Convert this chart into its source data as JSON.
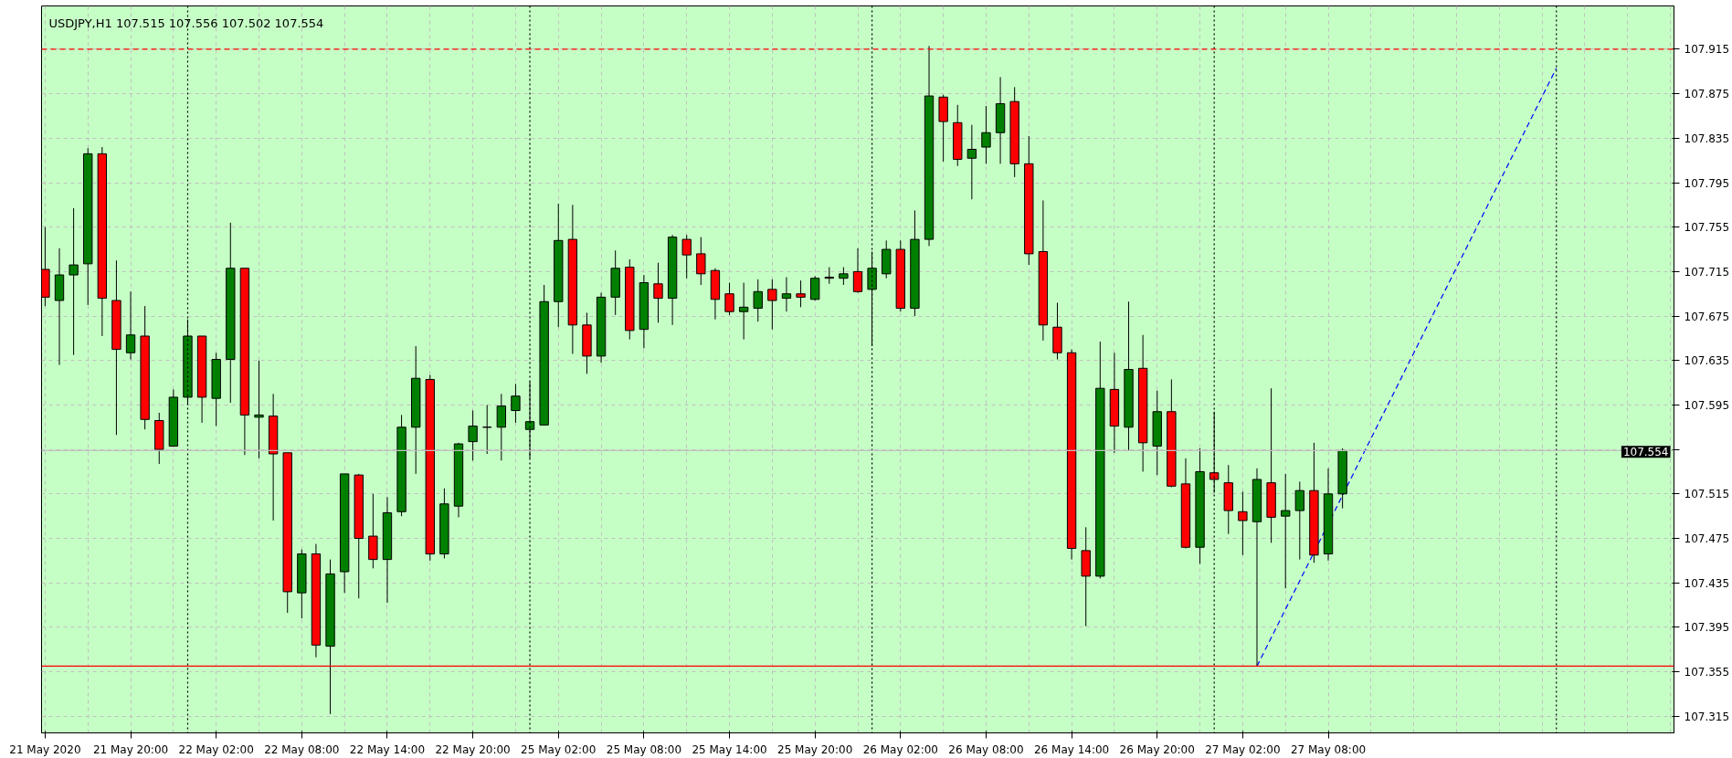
{
  "chart_data": {
    "type": "candlestick",
    "title": "USDJPY,H1  107.515 107.556 107.502 107.554",
    "categories": [
      "21 May 2020",
      null,
      null,
      null,
      null,
      null,
      "21 May 20:00",
      null,
      null,
      null,
      null,
      null,
      "22 May 02:00",
      null,
      null,
      null,
      null,
      null,
      "22 May 08:00",
      null,
      null,
      null,
      null,
      null,
      "22 May 14:00",
      null,
      null,
      null,
      null,
      null,
      "22 May 20:00",
      null,
      null,
      null,
      null,
      null,
      "25 May 02:00",
      null,
      null,
      null,
      null,
      null,
      "25 May 08:00",
      null,
      null,
      null,
      null,
      null,
      "25 May 14:00",
      null,
      null,
      null,
      null,
      null,
      "25 May 20:00",
      null,
      null,
      null,
      null,
      null,
      "26 May 02:00",
      null,
      null,
      null,
      null,
      null,
      "26 May 08:00",
      null,
      null,
      null,
      null,
      null,
      "26 May 14:00",
      null,
      null,
      null,
      null,
      null,
      "26 May 20:00",
      null,
      null,
      null,
      null,
      null,
      "27 May 02:00",
      null,
      null,
      null,
      null,
      null,
      "27 May 08:00",
      null,
      null,
      null,
      null,
      null,
      null,
      null,
      null,
      null,
      null,
      null,
      null,
      null,
      null,
      null,
      null,
      null,
      null,
      null,
      null,
      null,
      null,
      null,
      null
    ],
    "ohlc": [
      [
        107.717,
        107.755,
        107.684,
        107.692
      ],
      [
        107.689,
        107.736,
        107.631,
        107.712
      ],
      [
        107.712,
        107.772,
        107.64,
        107.721
      ],
      [
        107.722,
        107.826,
        107.685,
        107.821
      ],
      [
        107.821,
        107.827,
        107.657,
        107.691
      ],
      [
        107.689,
        107.725,
        107.568,
        107.645
      ],
      [
        107.642,
        107.697,
        107.636,
        107.658
      ],
      [
        107.657,
        107.684,
        107.573,
        107.582
      ],
      [
        107.581,
        107.588,
        107.542,
        107.555
      ],
      [
        107.558,
        107.609,
        107.558,
        107.602
      ],
      [
        107.602,
        107.672,
        107.595,
        107.657
      ],
      [
        107.657,
        107.657,
        107.579,
        107.602
      ],
      [
        107.601,
        107.642,
        107.576,
        107.636
      ],
      [
        107.636,
        107.759,
        107.597,
        107.718
      ],
      [
        107.718,
        107.718,
        107.55,
        107.586
      ],
      [
        107.584,
        107.635,
        107.547,
        107.586
      ],
      [
        107.585,
        107.605,
        107.491,
        107.551
      ],
      [
        107.552,
        107.552,
        107.408,
        107.427
      ],
      [
        107.426,
        107.465,
        107.403,
        107.461
      ],
      [
        107.461,
        107.47,
        107.368,
        107.379
      ],
      [
        107.378,
        107.456,
        107.317,
        107.443
      ],
      [
        107.445,
        107.533,
        107.426,
        107.533
      ],
      [
        107.532,
        107.533,
        107.421,
        107.475
      ],
      [
        107.477,
        107.515,
        107.448,
        107.456
      ],
      [
        107.456,
        107.512,
        107.417,
        107.498
      ],
      [
        107.499,
        107.586,
        107.495,
        107.575
      ],
      [
        107.575,
        107.648,
        107.533,
        107.619
      ],
      [
        107.618,
        107.622,
        107.455,
        107.461
      ],
      [
        107.461,
        107.52,
        107.457,
        107.506
      ],
      [
        107.504,
        107.561,
        107.494,
        107.56
      ],
      [
        107.562,
        107.59,
        107.545,
        107.576
      ],
      [
        107.575,
        107.595,
        107.551,
        107.575
      ],
      [
        107.575,
        107.605,
        107.545,
        107.594
      ],
      [
        107.59,
        107.614,
        107.579,
        107.603
      ],
      [
        107.573,
        107.616,
        107.547,
        107.58
      ],
      [
        107.577,
        107.703,
        107.577,
        107.688
      ],
      [
        107.688,
        107.776,
        107.665,
        107.743
      ],
      [
        107.744,
        107.775,
        107.641,
        107.667
      ],
      [
        107.667,
        107.678,
        107.623,
        107.639
      ],
      [
        107.639,
        107.696,
        107.633,
        107.692
      ],
      [
        107.692,
        107.734,
        107.676,
        107.718
      ],
      [
        107.719,
        107.726,
        107.654,
        107.662
      ],
      [
        107.663,
        107.712,
        107.646,
        107.705
      ],
      [
        107.704,
        107.723,
        107.669,
        107.691
      ],
      [
        107.691,
        107.748,
        107.667,
        107.746
      ],
      [
        107.744,
        107.748,
        107.709,
        107.73
      ],
      [
        107.731,
        107.746,
        107.703,
        107.713
      ],
      [
        107.716,
        107.718,
        107.672,
        107.69
      ],
      [
        107.695,
        107.705,
        107.676,
        107.679
      ],
      [
        107.679,
        107.705,
        107.654,
        107.683
      ],
      [
        107.682,
        107.708,
        107.67,
        107.697
      ],
      [
        107.699,
        107.708,
        107.663,
        107.689
      ],
      [
        107.691,
        107.71,
        107.679,
        107.695
      ],
      [
        107.695,
        107.707,
        107.683,
        107.692
      ],
      [
        107.69,
        107.711,
        107.689,
        107.709
      ],
      [
        107.71,
        107.719,
        107.704,
        107.709
      ],
      [
        107.709,
        107.719,
        107.703,
        107.713
      ],
      [
        107.715,
        107.736,
        107.696,
        107.697
      ],
      [
        107.699,
        107.733,
        107.648,
        107.718
      ],
      [
        107.713,
        107.743,
        107.709,
        107.735
      ],
      [
        107.735,
        107.743,
        107.679,
        107.682
      ],
      [
        107.682,
        107.77,
        107.675,
        107.744
      ],
      [
        107.744,
        107.918,
        107.738,
        107.873
      ],
      [
        107.872,
        107.874,
        107.814,
        107.85
      ],
      [
        107.849,
        107.865,
        107.81,
        107.816
      ],
      [
        107.817,
        107.847,
        107.78,
        107.825
      ],
      [
        107.827,
        107.864,
        107.812,
        107.84
      ],
      [
        107.84,
        107.89,
        107.812,
        107.866
      ],
      [
        107.868,
        107.881,
        107.8,
        107.812
      ],
      [
        107.812,
        107.837,
        107.721,
        107.731
      ],
      [
        107.733,
        107.779,
        107.653,
        107.667
      ],
      [
        107.665,
        107.687,
        107.636,
        107.642
      ],
      [
        107.642,
        107.645,
        107.456,
        107.466
      ],
      [
        107.464,
        107.485,
        107.396,
        107.441
      ],
      [
        107.441,
        107.652,
        107.439,
        107.61
      ],
      [
        107.609,
        107.642,
        107.552,
        107.576
      ],
      [
        107.575,
        107.688,
        107.554,
        107.627
      ],
      [
        107.628,
        107.658,
        107.535,
        107.561
      ],
      [
        107.558,
        107.608,
        107.532,
        107.589
      ],
      [
        107.589,
        107.618,
        107.521,
        107.522
      ],
      [
        107.524,
        107.547,
        107.466,
        107.467
      ],
      [
        107.467,
        107.556,
        107.452,
        107.535
      ],
      [
        107.534,
        107.589,
        107.516,
        107.528
      ],
      [
        107.525,
        107.541,
        107.479,
        107.5
      ],
      [
        107.499,
        107.517,
        107.46,
        107.491
      ],
      [
        107.49,
        107.538,
        107.36,
        107.528
      ],
      [
        107.525,
        107.61,
        107.471,
        107.494
      ],
      [
        107.495,
        107.533,
        107.43,
        107.5
      ],
      [
        107.5,
        107.526,
        107.456,
        107.518
      ],
      [
        107.518,
        107.561,
        107.453,
        107.46
      ],
      [
        107.461,
        107.538,
        107.455,
        107.515
      ],
      [
        107.515,
        107.556,
        107.502,
        107.554
      ],
      null,
      null,
      null,
      null,
      null,
      null,
      null,
      null,
      null,
      null,
      null,
      null,
      null,
      null,
      null,
      null,
      null,
      null,
      null,
      null,
      null,
      null,
      null
    ],
    "colors": [
      "#ff0000",
      "#008000",
      "#008000",
      "#008000",
      "#ff0000",
      "#ff0000",
      "#008000",
      "#ff0000",
      "#ff0000",
      "#008000",
      "#008000",
      "#ff0000",
      "#008000",
      "#008000",
      "#ff0000",
      "#008000",
      "#ff0000",
      "#ff0000",
      "#008000",
      "#ff0000",
      "#008000",
      "#008000",
      "#ff0000",
      "#ff0000",
      "#008000",
      "#008000",
      "#008000",
      "#ff0000",
      "#008000",
      "#008000",
      "#008000",
      "#000000",
      "#008000",
      "#008000",
      "#008000",
      "#008000",
      "#008000",
      "#ff0000",
      "#ff0000",
      "#008000",
      "#008000",
      "#ff0000",
      "#008000",
      "#ff0000",
      "#008000",
      "#ff0000",
      "#ff0000",
      "#ff0000",
      "#ff0000",
      "#008000",
      "#008000",
      "#ff0000",
      "#008000",
      "#ff0000",
      "#008000",
      "#ff0000",
      "#008000",
      "#ff0000",
      "#008000",
      "#008000",
      "#ff0000",
      "#008000",
      "#008000",
      "#ff0000",
      "#ff0000",
      "#008000",
      "#008000",
      "#008000",
      "#ff0000",
      "#ff0000",
      "#ff0000",
      "#ff0000",
      "#ff0000",
      "#ff0000",
      "#008000",
      "#ff0000",
      "#008000",
      "#ff0000",
      "#008000",
      "#ff0000",
      "#ff0000",
      "#008000",
      "#ff0000",
      "#ff0000",
      "#ff0000",
      "#008000",
      "#ff0000",
      "#008000",
      "#008000",
      "#ff0000",
      "#008000",
      "#008000",
      null,
      null,
      null,
      null,
      null,
      null,
      null,
      null,
      null,
      null,
      null,
      null,
      null,
      null,
      null,
      null,
      null,
      null,
      null,
      null,
      null,
      null,
      null
    ],
    "series": [
      {
        "type": "line",
        "values": [
          null,
          null,
          null,
          null,
          null,
          null,
          null,
          null,
          null,
          null,
          null,
          null,
          null,
          null,
          null,
          null,
          null,
          null,
          null,
          null,
          null,
          null,
          null,
          null,
          null,
          null,
          null,
          null,
          null,
          null,
          null,
          null,
          null,
          null,
          null,
          null,
          null,
          null,
          null,
          null,
          null,
          null,
          null,
          null,
          null,
          null,
          null,
          null,
          null,
          null,
          null,
          null,
          null,
          null,
          null,
          null,
          null,
          null,
          null,
          null,
          null,
          null,
          null,
          null,
          null,
          null,
          null,
          null,
          null,
          null,
          null,
          null,
          null,
          null,
          null,
          null,
          null,
          null,
          null,
          null,
          null,
          null,
          null,
          null,
          null,
          107.36,
          null,
          null,
          null,
          null,
          null,
          null,
          null,
          null,
          null,
          null,
          null,
          null,
          null,
          null,
          null,
          null,
          null,
          null,
          null,
          null,
          107.898,
          null,
          null,
          null,
          null,
          null,
          null,
          null,
          null
        ],
        "color": "#0000ff",
        "line_style": "dashed"
      }
    ],
    "ylim": [
      107.3,
      107.954
    ],
    "yticks": [
      107.315,
      107.355,
      107.395,
      107.435,
      107.475,
      107.515,
      {
        "value": 107.555,
        "label": null
      },
      107.595,
      107.635,
      107.675,
      107.715,
      107.755,
      107.795,
      107.835,
      107.875,
      107.915
    ],
    "ref_lines": [
      {
        "axis": "y",
        "value": 107.915,
        "color": "#ff0000",
        "line_style": "dashed"
      },
      {
        "axis": "y",
        "value": 107.36,
        "color": "#ff0000",
        "line_style": "solid"
      },
      {
        "axis": "y",
        "value": 107.554,
        "label": "107.554",
        "color": "#c0c0c0",
        "line_style": "solid"
      }
    ],
    "grid": true
  }
}
